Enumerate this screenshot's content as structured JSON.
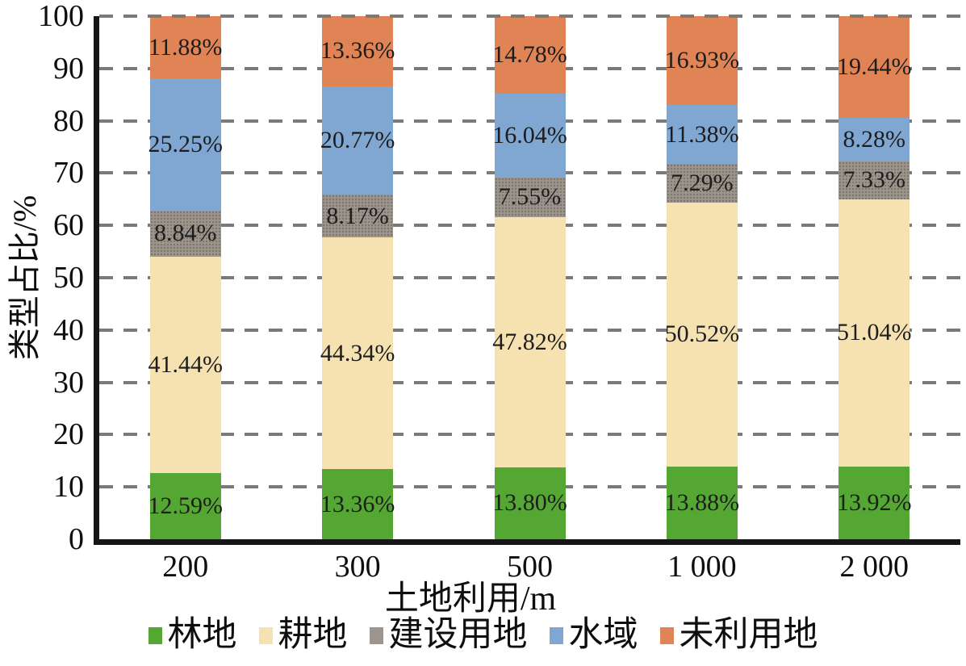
{
  "chart_data": {
    "type": "bar",
    "variant": "stacked-percent-column",
    "title": "",
    "xlabel": "土地利用/m",
    "ylabel": "类型占比/%",
    "categories": [
      "200",
      "300",
      "500",
      "1 000",
      "2 000"
    ],
    "series": [
      {
        "name": "林地",
        "color": "#55a733",
        "values": [
          12.59,
          13.36,
          13.8,
          13.88,
          13.92
        ]
      },
      {
        "name": "耕地",
        "color": "#f6e2b1",
        "values": [
          41.44,
          44.34,
          47.82,
          50.52,
          51.04
        ]
      },
      {
        "name": "建设用地",
        "color": "#9b958e",
        "texture": "dots",
        "values": [
          8.84,
          8.17,
          7.55,
          7.29,
          7.33
        ]
      },
      {
        "name": "水域",
        "color": "#7fa7d1",
        "values": [
          25.25,
          20.77,
          16.04,
          11.38,
          8.28
        ]
      },
      {
        "name": "未利用地",
        "color": "#e08355",
        "values": [
          11.88,
          13.36,
          14.78,
          16.93,
          19.44
        ]
      }
    ],
    "value_label_format": "0.00%",
    "ylim": [
      0,
      100
    ],
    "yticks": [
      0,
      10,
      20,
      30,
      40,
      50,
      60,
      70,
      80,
      90,
      100
    ],
    "grid": "horizontal-dashed",
    "legend_position": "bottom",
    "colors": {
      "axis": "#161616",
      "grid": "#7a7a7a",
      "label_text": "#1d1d1d"
    }
  }
}
